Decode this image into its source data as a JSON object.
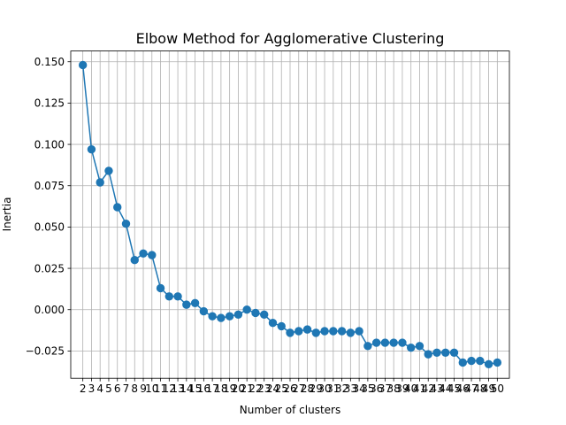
{
  "chart_data": {
    "type": "line",
    "title": "Elbow Method for Agglomerative Clustering",
    "xlabel": "Number of clusters",
    "ylabel": "Inertia",
    "xlim": [
      0.6,
      51.4
    ],
    "ylim": [
      -0.0415,
      0.1565
    ],
    "grid": true,
    "marker": "circle",
    "color": "#1f77b4",
    "x": [
      2,
      3,
      4,
      5,
      6,
      7,
      8,
      9,
      10,
      11,
      12,
      13,
      14,
      15,
      16,
      17,
      18,
      19,
      20,
      21,
      22,
      23,
      24,
      25,
      26,
      27,
      28,
      29,
      30,
      31,
      32,
      33,
      34,
      35,
      36,
      37,
      38,
      39,
      40,
      41,
      42,
      43,
      44,
      45,
      46,
      47,
      48,
      49,
      50
    ],
    "xticks": [
      2,
      3,
      4,
      5,
      6,
      7,
      8,
      9,
      10,
      11,
      12,
      13,
      14,
      15,
      16,
      17,
      18,
      19,
      20,
      21,
      22,
      23,
      24,
      25,
      26,
      27,
      28,
      29,
      30,
      31,
      32,
      33,
      34,
      35,
      36,
      37,
      38,
      39,
      40,
      41,
      42,
      43,
      44,
      45,
      46,
      47,
      48,
      49,
      50
    ],
    "yticks": [
      -0.025,
      0.0,
      0.025,
      0.05,
      0.075,
      0.1,
      0.125,
      0.15
    ],
    "ytick_labels": [
      "−0.025",
      "0.000",
      "0.025",
      "0.050",
      "0.075",
      "0.100",
      "0.125",
      "0.150"
    ],
    "series": [
      {
        "values": [
          0.148,
          0.097,
          0.077,
          0.084,
          0.062,
          0.052,
          0.03,
          0.034,
          0.033,
          0.013,
          0.008,
          0.008,
          0.003,
          0.004,
          -0.001,
          -0.004,
          -0.005,
          -0.004,
          -0.003,
          0.0,
          -0.002,
          -0.003,
          -0.008,
          -0.01,
          -0.014,
          -0.013,
          -0.012,
          -0.014,
          -0.013,
          -0.013,
          -0.013,
          -0.014,
          -0.013,
          -0.022,
          -0.02,
          -0.02,
          -0.02,
          -0.02,
          -0.023,
          -0.022,
          -0.027,
          -0.026,
          -0.026,
          -0.026,
          -0.032,
          -0.031,
          -0.031,
          -0.033,
          -0.032
        ]
      }
    ]
  }
}
